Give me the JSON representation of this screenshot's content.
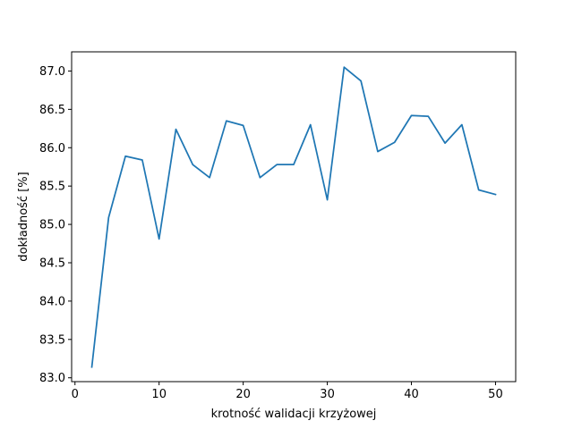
{
  "chart_data": {
    "type": "line",
    "title": "",
    "xlabel": "krotność walidacji krzyżowej",
    "ylabel": "dokładność [%]",
    "xlim": [
      -0.4,
      52.4
    ],
    "ylim": [
      82.95,
      87.25
    ],
    "xticks": [
      0,
      10,
      20,
      30,
      40,
      50
    ],
    "yticks": [
      83.0,
      83.5,
      84.0,
      84.5,
      85.0,
      85.5,
      86.0,
      86.5,
      87.0
    ],
    "ytick_labels": [
      "83.0",
      "83.5",
      "84.0",
      "84.5",
      "85.0",
      "85.5",
      "86.0",
      "86.5",
      "87.0"
    ],
    "grid": false,
    "series": [
      {
        "color": "#1f77b4",
        "x": [
          2,
          4,
          6,
          8,
          10,
          12,
          14,
          16,
          18,
          20,
          22,
          24,
          26,
          28,
          30,
          32,
          34,
          36,
          38,
          40,
          42,
          44,
          46,
          48,
          50
        ],
        "y": [
          83.14,
          85.09,
          85.89,
          85.84,
          84.81,
          86.24,
          85.78,
          85.61,
          86.35,
          86.29,
          85.61,
          85.78,
          85.78,
          86.3,
          85.32,
          87.05,
          86.87,
          85.95,
          86.07,
          86.42,
          86.41,
          86.06,
          86.3,
          85.45,
          85.39
        ]
      }
    ]
  }
}
